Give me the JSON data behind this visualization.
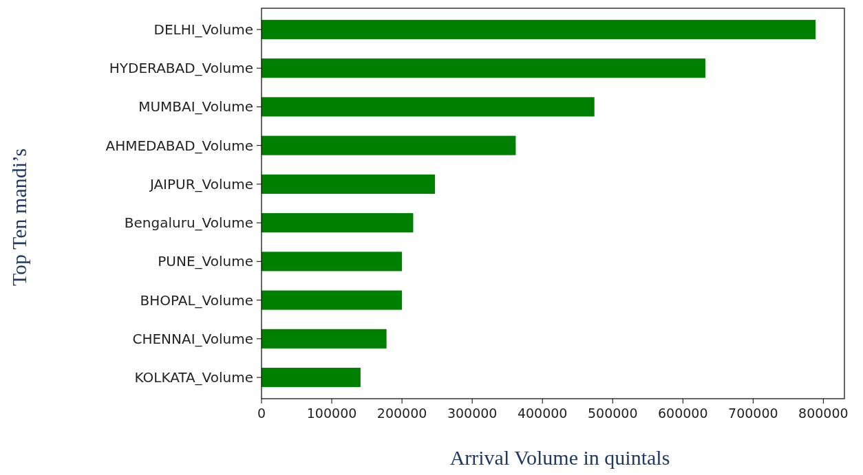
{
  "chart_data": {
    "type": "bar",
    "orientation": "horizontal",
    "ylabel": "Top Ten mandi’s",
    "xlabel": "Arrival Volume in quintals",
    "categories": [
      "DELHI_Volume",
      "HYDERABAD_Volume",
      "MUMBAI_Volume",
      "AHMEDABAD_Volume",
      "JAIPUR_Volume",
      "Bengaluru_Volume",
      "PUNE_Volume",
      "BHOPAL_Volume",
      "CHENNAI_Volume",
      "KOLKATA_Volume"
    ],
    "values": [
      789000,
      632000,
      474000,
      362000,
      247000,
      216000,
      200000,
      200000,
      178000,
      141000
    ],
    "color": "#008000",
    "xlim": [
      0,
      830000
    ],
    "xticks": [
      0,
      100000,
      200000,
      300000,
      400000,
      500000,
      600000,
      700000,
      800000
    ],
    "grid": false
  }
}
